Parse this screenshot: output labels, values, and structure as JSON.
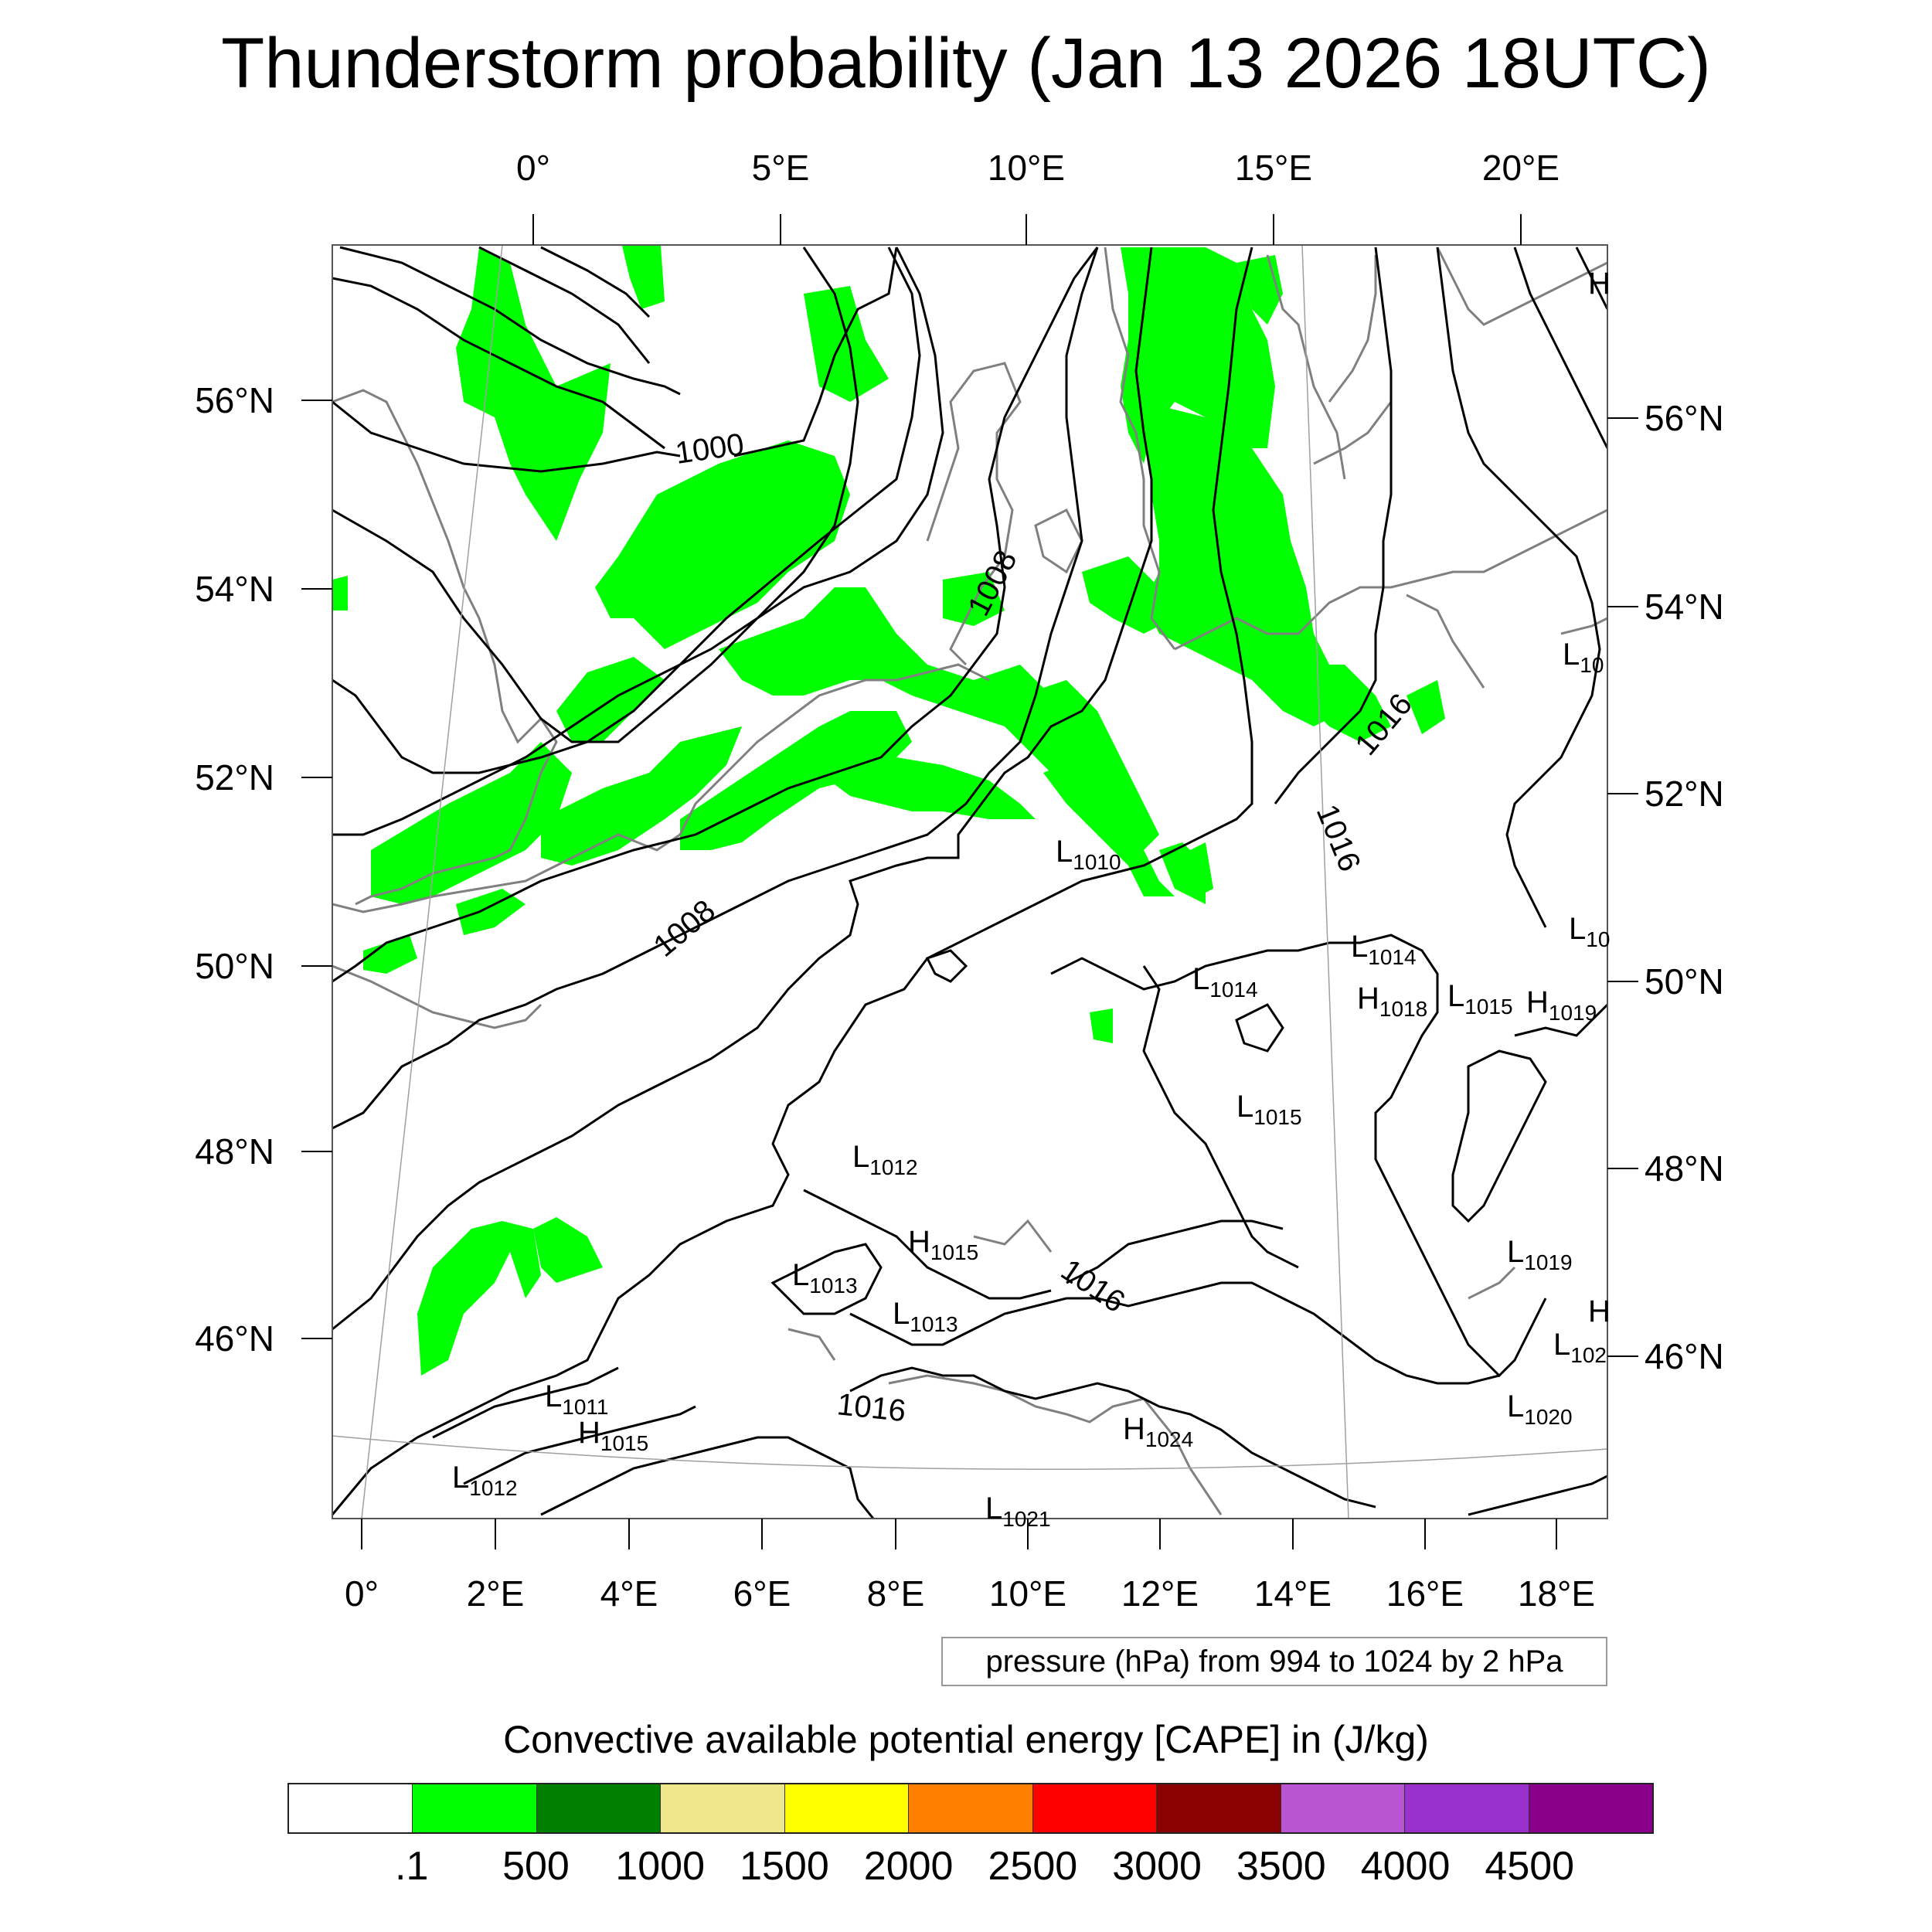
{
  "title": "Thunderstorm probability (Jan 13 2026 18UTC)",
  "top_lon_labels": [
    "0°",
    "5°E",
    "10°E",
    "15°E",
    "20°E"
  ],
  "bottom_lon_labels": [
    "0°",
    "2°E",
    "4°E",
    "6°E",
    "8°E",
    "10°E",
    "12°E",
    "14°E",
    "16°E",
    "18°E"
  ],
  "left_lat_labels": [
    "56°N",
    "54°N",
    "52°N",
    "50°N",
    "48°N",
    "46°N"
  ],
  "right_lat_labels": [
    "56°N",
    "54°N",
    "52°N",
    "50°N",
    "48°N",
    "46°N"
  ],
  "contour_labels": [
    "1000",
    "1008",
    "1008",
    "1016",
    "1016",
    "1016",
    "1016"
  ],
  "pressure_centers": [
    {
      "type": "L",
      "value": "1010"
    },
    {
      "type": "L",
      "value": "1014"
    },
    {
      "type": "L",
      "value": "1014"
    },
    {
      "type": "H",
      "value": "1018"
    },
    {
      "type": "L",
      "value": "1015"
    },
    {
      "type": "H",
      "value": "1019"
    },
    {
      "type": "L",
      "value": "1015"
    },
    {
      "type": "L",
      "value": "1012"
    },
    {
      "type": "H",
      "value": "1015"
    },
    {
      "type": "L",
      "value": "1013"
    },
    {
      "type": "L",
      "value": "1013"
    },
    {
      "type": "L",
      "value": "1019"
    },
    {
      "type": "L",
      "value": "1011"
    },
    {
      "type": "H",
      "value": "1015"
    },
    {
      "type": "L",
      "value": "1012"
    },
    {
      "type": "H",
      "value": "1024"
    },
    {
      "type": "L",
      "value": "1020"
    },
    {
      "type": "L",
      "value": "102"
    },
    {
      "type": "L",
      "value": "10"
    },
    {
      "type": "L",
      "value": "10"
    },
    {
      "type": "L",
      "value": "1021"
    }
  ],
  "edge_letters": [
    "H",
    "H"
  ],
  "pressure_info": "pressure (hPa) from 994 to 1024 by 2 hPa",
  "colorbar": {
    "title": "Convective available potential energy [CAPE] in (J/kg)",
    "labels": [
      ".1",
      "500",
      "1000",
      "1500",
      "2000",
      "2500",
      "3000",
      "3500",
      "4000",
      "4500"
    ],
    "colors": [
      "#ffffff",
      "#00ff00",
      "#008000",
      "#f0e68c",
      "#ffff00",
      "#ff8000",
      "#ff0000",
      "#8b0000",
      "#ba55d3",
      "#9932cc",
      "#8b008b"
    ]
  },
  "colors": {
    "cape_fill": "#00ff00",
    "coastline": "#808080",
    "isobar": "#000000"
  }
}
